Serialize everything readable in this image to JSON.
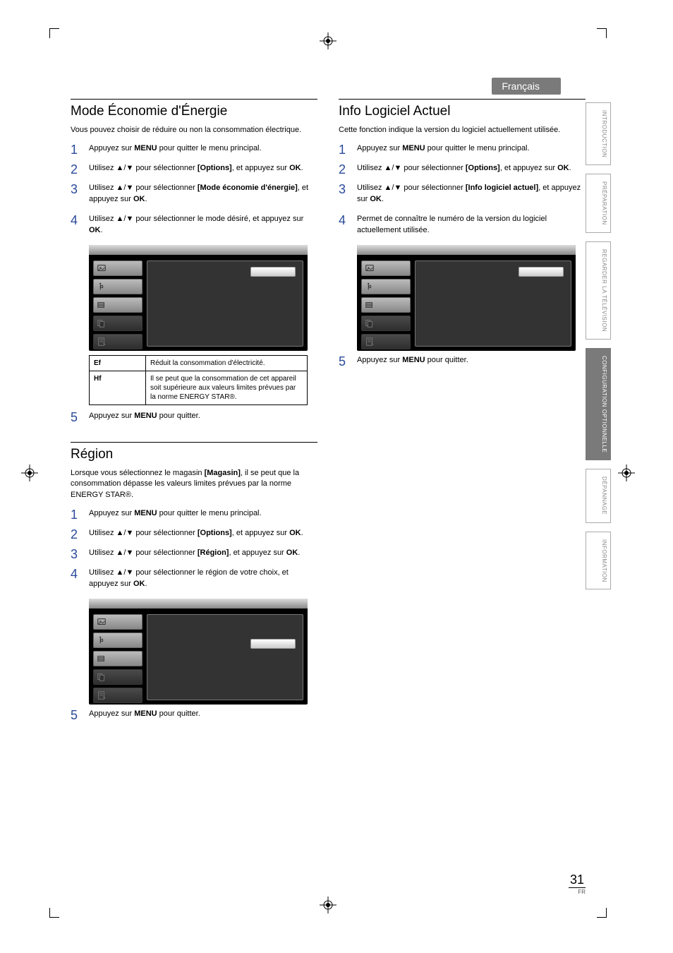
{
  "lang_badge": "Français",
  "side_tabs": [
    {
      "label": "INTRODUCTION",
      "active": false
    },
    {
      "label": "PRÉPARATION",
      "active": false
    },
    {
      "label": "REGARDER LA TÉLÉVISION",
      "active": false
    },
    {
      "label": "CONFIGURATION OPTIONNELLE",
      "active": true
    },
    {
      "label": "DÉPANNAGE",
      "active": false
    },
    {
      "label": "INFORMATION",
      "active": false
    }
  ],
  "page_number": "31",
  "page_lang": "FR",
  "sections": {
    "energy": {
      "title": "Mode Économie d'Énergie",
      "intro": "Vous pouvez choisir de réduire ou non la consommation électrique.",
      "steps": [
        [
          {
            "t": "Appuyez sur "
          },
          {
            "t": "MENU",
            "b": true
          },
          {
            "t": " pour quitter le menu principal."
          }
        ],
        [
          {
            "t": "Utilisez ▲/▼ pour sélectionner "
          },
          {
            "t": "[Options]",
            "b": true
          },
          {
            "t": ", et appuyez sur "
          },
          {
            "t": "OK",
            "b": true
          },
          {
            "t": "."
          }
        ],
        [
          {
            "t": "Utilisez ▲/▼ pour sélectionner "
          },
          {
            "t": "[Mode économie d'énergie]",
            "b": true
          },
          {
            "t": ", et appuyez sur "
          },
          {
            "t": "OK",
            "b": true
          },
          {
            "t": "."
          }
        ],
        [
          {
            "t": "Utilisez ▲/▼ pour sélectionner le mode désiré, et appuyez sur "
          },
          {
            "t": "OK",
            "b": true
          },
          {
            "t": "."
          }
        ]
      ],
      "table": [
        {
          "k": "Ef",
          "v": "Réduit la consommation d'électricité."
        },
        {
          "k": "Hf",
          "v": "Il se peut que la consommation de cet appareil soit supérieure aux valeurs limites prévues par la norme ENERGY STAR®."
        }
      ],
      "step5": [
        {
          "t": "Appuyez sur "
        },
        {
          "t": "MENU",
          "b": true
        },
        {
          "t": " pour quitter."
        }
      ]
    },
    "region": {
      "title": "Région",
      "intro_parts": [
        {
          "t": "Lorsque vous sélectionnez le magasin "
        },
        {
          "t": "[Magasin]",
          "b": true
        },
        {
          "t": ", il se peut que la consommation dépasse les valeurs limites prévues par la norme ENERGY STAR®."
        }
      ],
      "steps": [
        [
          {
            "t": "Appuyez sur "
          },
          {
            "t": "MENU",
            "b": true
          },
          {
            "t": " pour quitter le menu principal."
          }
        ],
        [
          {
            "t": "Utilisez ▲/▼ pour sélectionner "
          },
          {
            "t": "[Options]",
            "b": true
          },
          {
            "t": ", et appuyez sur "
          },
          {
            "t": "OK",
            "b": true
          },
          {
            "t": "."
          }
        ],
        [
          {
            "t": "Utilisez ▲/▼ pour sélectionner "
          },
          {
            "t": "[Région]",
            "b": true
          },
          {
            "t": ", et appuyez sur "
          },
          {
            "t": "OK",
            "b": true
          },
          {
            "t": "."
          }
        ],
        [
          {
            "t": "Utilisez ▲/▼ pour sélectionner le région de votre choix, et appuyez sur "
          },
          {
            "t": "OK",
            "b": true
          },
          {
            "t": "."
          }
        ]
      ],
      "step5": [
        {
          "t": "Appuyez sur "
        },
        {
          "t": "MENU",
          "b": true
        },
        {
          "t": " pour quitter."
        }
      ]
    },
    "info": {
      "title": "Info Logiciel Actuel",
      "intro": "Cette fonction indique la version du logiciel actuellement utilisée.",
      "steps": [
        [
          {
            "t": "Appuyez sur "
          },
          {
            "t": "MENU",
            "b": true
          },
          {
            "t": " pour quitter le menu principal."
          }
        ],
        [
          {
            "t": "Utilisez ▲/▼ pour sélectionner "
          },
          {
            "t": "[Options]",
            "b": true
          },
          {
            "t": ", et appuyez sur "
          },
          {
            "t": "OK",
            "b": true
          },
          {
            "t": "."
          }
        ],
        [
          {
            "t": "Utilisez ▲/▼ pour sélectionner "
          },
          {
            "t": "[Info logiciel actuel]",
            "b": true
          },
          {
            "t": ", et appuyez sur "
          },
          {
            "t": "OK",
            "b": true
          },
          {
            "t": "."
          }
        ],
        [
          {
            "t": "Permet de connaître le numéro de la version du logiciel actuellement utilisée."
          }
        ]
      ],
      "step5": [
        {
          "t": "Appuyez sur "
        },
        {
          "t": "MENU",
          "b": true
        },
        {
          "t": " pour quitter."
        }
      ]
    }
  },
  "screenshot": {
    "icons": [
      "picture",
      "sound",
      "features",
      "pbc",
      "setup"
    ],
    "colors": {
      "background": "#000000",
      "panel": "#333333",
      "item_grad_light": "#bbbbbb",
      "item_grad_dark": "#888888",
      "field_bg": "#ffffff"
    }
  }
}
